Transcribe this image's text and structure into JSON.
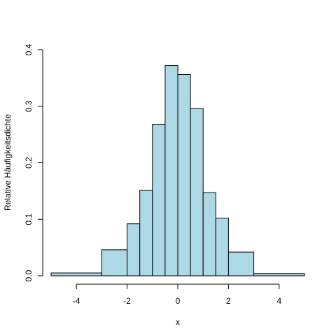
{
  "chart_data": {
    "type": "bar",
    "title": "",
    "xlabel": "x",
    "ylabel": "Relative Häufigkeitsdichte",
    "xlim": [
      -5,
      5
    ],
    "ylim": [
      0,
      0.4
    ],
    "grid": false,
    "colors": {
      "bar_fill": "#add8e6",
      "bar_stroke": "#000000"
    },
    "x_ticks": [
      -4,
      -2,
      0,
      2,
      4
    ],
    "x_tick_labels": [
      "-4",
      "-2",
      "0",
      "2",
      "4"
    ],
    "y_ticks": [
      0.0,
      0.1,
      0.2,
      0.3,
      0.4
    ],
    "y_tick_labels": [
      "0.0",
      "0.1",
      "0.2",
      "0.3",
      "0.4"
    ],
    "bins": [
      {
        "start": -5.0,
        "end": -3.0,
        "value": 0.005
      },
      {
        "start": -3.0,
        "end": -2.0,
        "value": 0.046
      },
      {
        "start": -2.0,
        "end": -1.5,
        "value": 0.092
      },
      {
        "start": -1.5,
        "end": -1.0,
        "value": 0.151
      },
      {
        "start": -1.0,
        "end": -0.5,
        "value": 0.268
      },
      {
        "start": -0.5,
        "end": 0.0,
        "value": 0.372
      },
      {
        "start": 0.0,
        "end": 0.5,
        "value": 0.356
      },
      {
        "start": 0.5,
        "end": 1.0,
        "value": 0.296
      },
      {
        "start": 1.0,
        "end": 1.5,
        "value": 0.147
      },
      {
        "start": 1.5,
        "end": 2.0,
        "value": 0.102
      },
      {
        "start": 2.0,
        "end": 3.0,
        "value": 0.042
      },
      {
        "start": 3.0,
        "end": 5.0,
        "value": 0.004
      }
    ]
  }
}
